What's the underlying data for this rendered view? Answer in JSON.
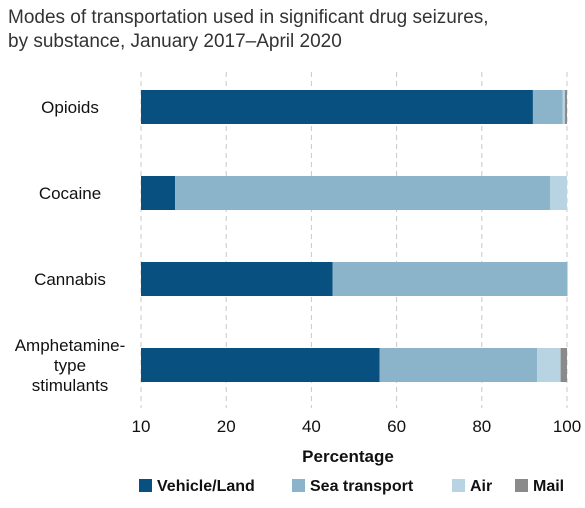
{
  "title_lines": [
    "Modes of transportation used in significant drug seizures,",
    "by substance, January 2017–April 2020"
  ],
  "chart_data": {
    "type": "bar",
    "orientation": "horizontal",
    "stacked": true,
    "categories": [
      [
        "Opioids"
      ],
      [
        "Cocaine"
      ],
      [
        "Cannabis"
      ],
      [
        "Amphetamine-",
        "type",
        "stimulants"
      ]
    ],
    "series": [
      {
        "name": "Vehicle/Land",
        "color": "#08507f",
        "values": [
          92,
          8,
          45,
          56
        ]
      },
      {
        "name": "Sea transport",
        "color": "#8bb3c9",
        "values": [
          7,
          88,
          55,
          37
        ]
      },
      {
        "name": "Air",
        "color": "#b8d4e2",
        "values": [
          0.5,
          4,
          0.2,
          5.5
        ]
      },
      {
        "name": "Mail",
        "color": "#8a8a8a",
        "values": [
          0.5,
          0,
          0,
          1.5
        ]
      }
    ],
    "xlabel": "Percentage",
    "xticks": [
      "10",
      "20",
      "40",
      "60",
      "80",
      "100"
    ],
    "xlim": [
      0,
      100
    ],
    "grid": "vertical dashed",
    "legend_position": "bottom"
  }
}
